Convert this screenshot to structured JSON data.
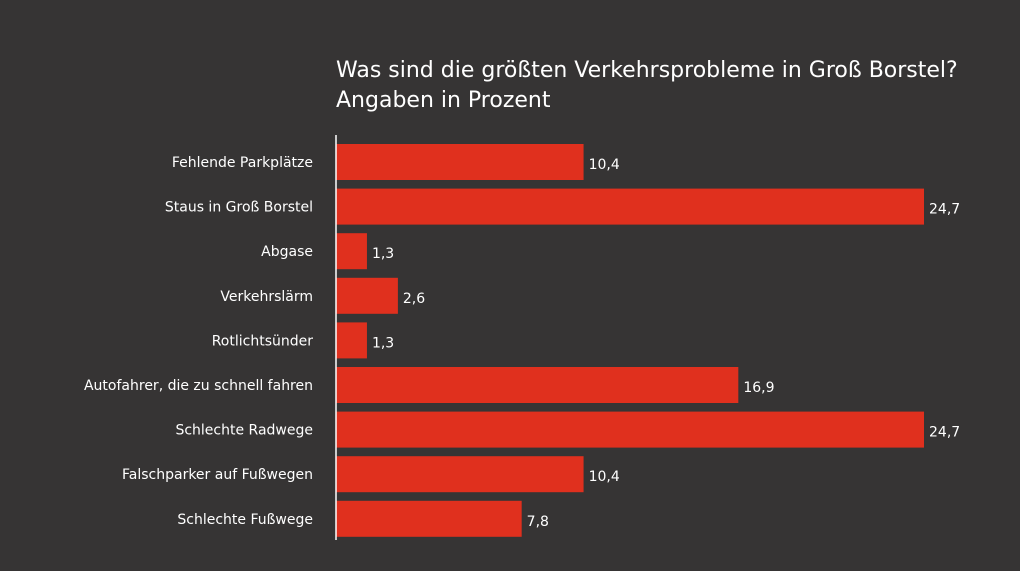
{
  "chart_data": {
    "type": "bar",
    "orientation": "horizontal",
    "title": "Was sind die größten Verkehrsprobleme in Groß Borstel?",
    "subtitle": "Angaben in Prozent",
    "categories": [
      "Fehlende Parkplätze",
      "Staus in Groß Borstel",
      "Abgase",
      "Verkehrslärm",
      "Rotlichtsünder",
      "Autofahrer, die zu schnell fahren",
      "Schlechte Radwege",
      "Falschparker auf Fußwegen",
      "Schlechte Fußwege"
    ],
    "values": [
      10.4,
      24.7,
      1.3,
      2.6,
      1.3,
      16.9,
      24.7,
      10.4,
      7.8
    ],
    "value_labels": [
      "10,4",
      "24,7",
      "1,3",
      "2,6",
      "1,3",
      "16,9",
      "24,7",
      "10,4",
      "7,8"
    ],
    "xlim": [
      0,
      24.7
    ],
    "grid": false,
    "legend": "none",
    "colors": {
      "bar": "#e0301e",
      "background": "#363434",
      "text": "#ffffff",
      "axis": "#ffffff"
    }
  }
}
